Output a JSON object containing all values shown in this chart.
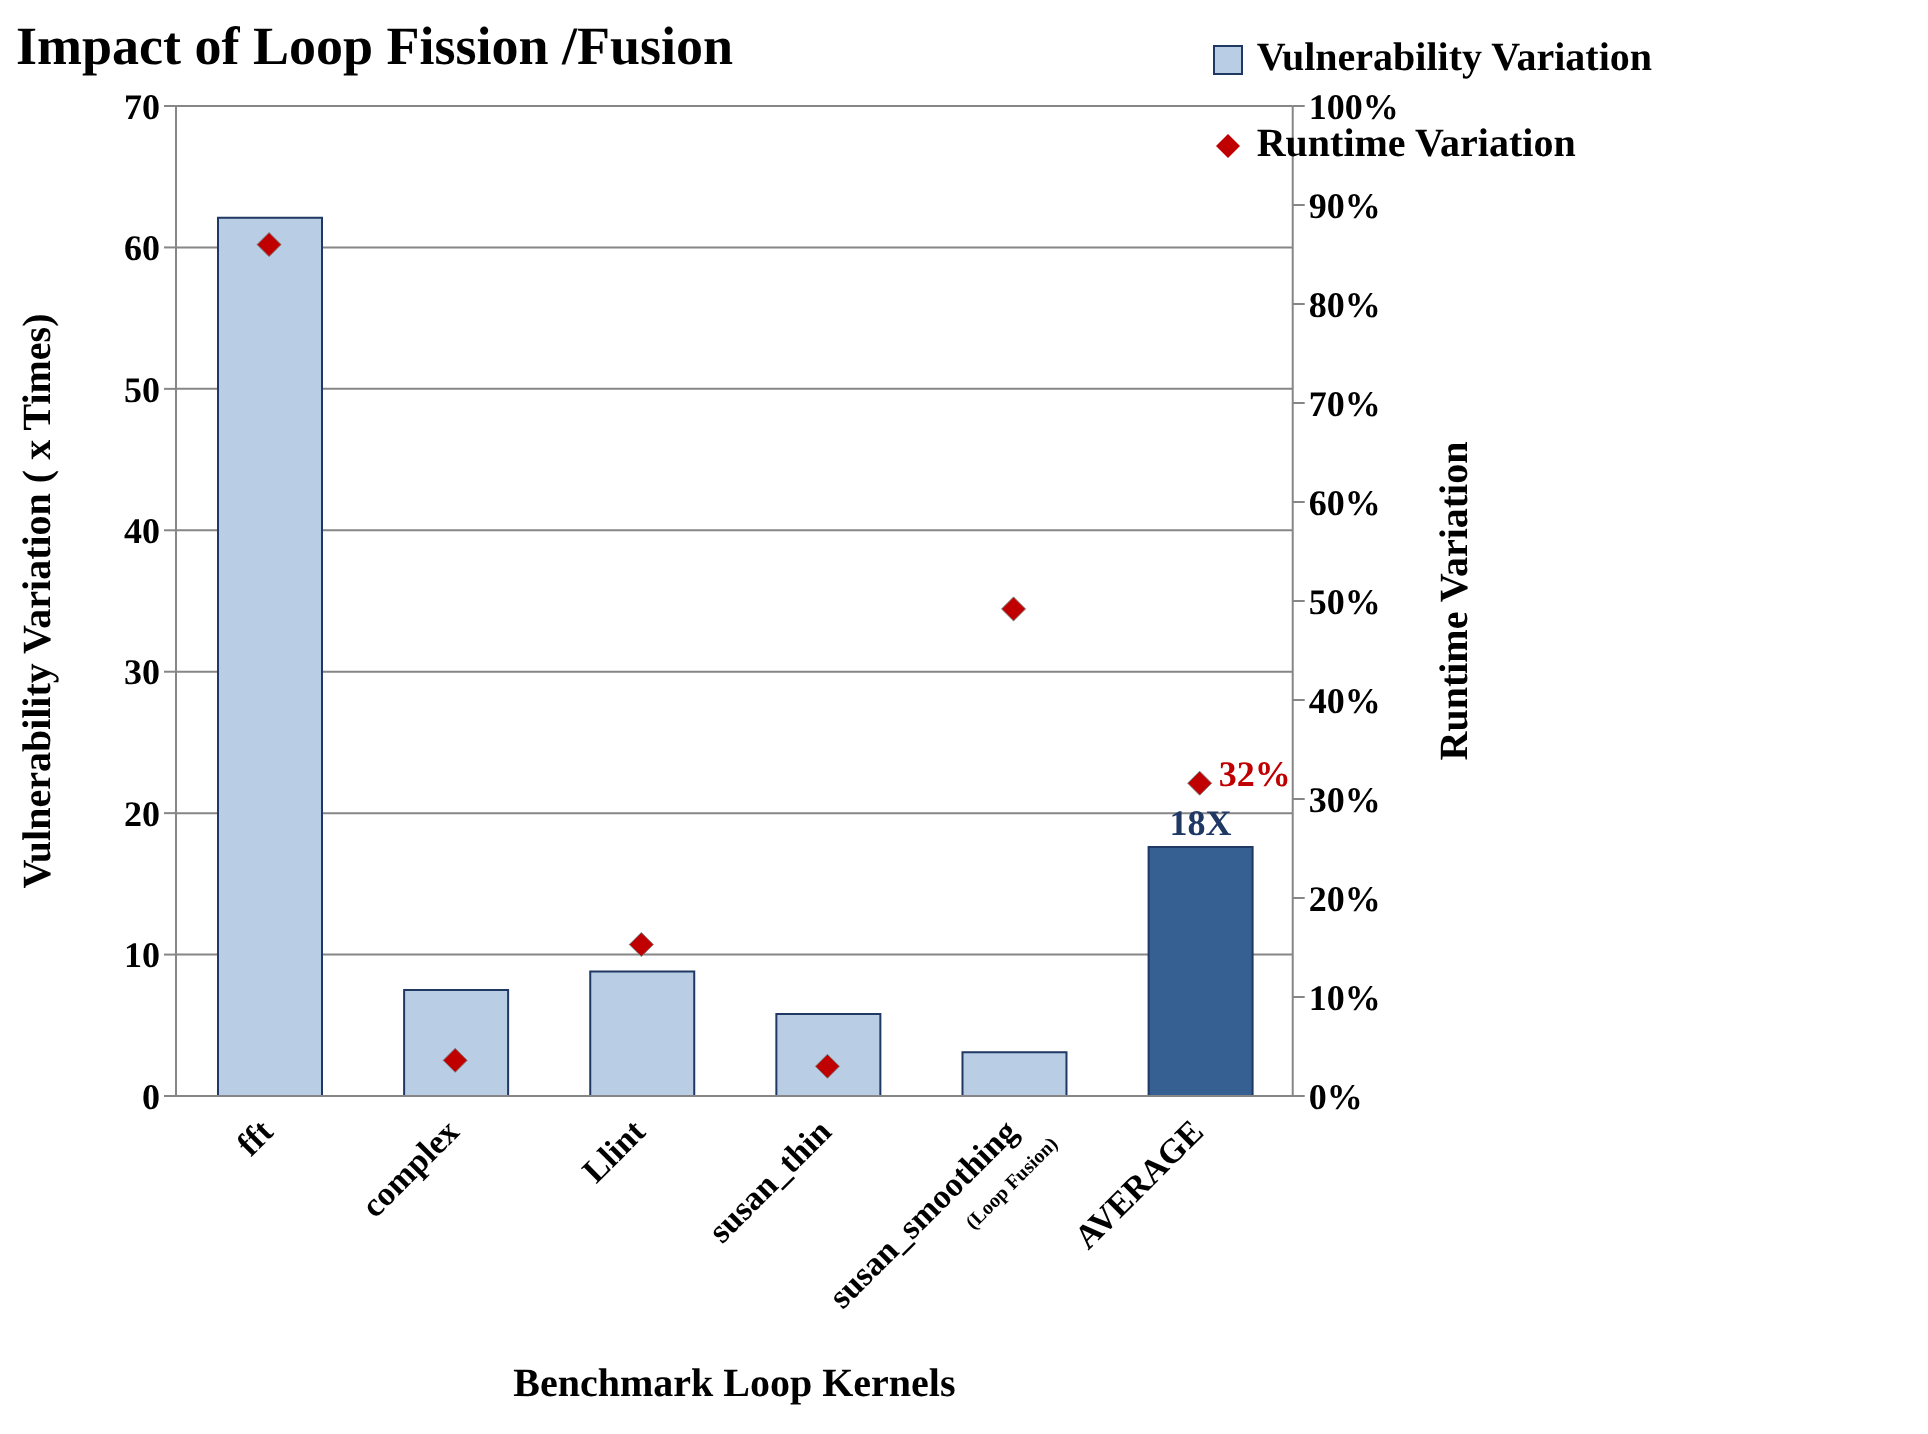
{
  "chart_data": {
    "type": "bar",
    "title": "Impact of  Loop Fission /Fusion",
    "xlabel": "Benchmark Loop Kernels",
    "ylabel": "Vulnerability Variation ( x Times)",
    "y2label": "Runtime Variation",
    "categories": [
      "fft",
      "complex",
      "Llint",
      "susan_thin",
      "susan_smoothing\n(Loop Fusion)",
      "AVERAGE"
    ],
    "series": [
      {
        "name": "Vulnerability Variation",
        "color": "#b9cde5",
        "colors": [
          "#b9cde5",
          "#b9cde5",
          "#b9cde5",
          "#b9cde5",
          "#b9cde5",
          "#366092"
        ],
        "values": [
          62.1,
          7.5,
          8.8,
          5.8,
          3.1,
          17.6
        ],
        "value_labels": [
          null,
          null,
          null,
          null,
          null,
          "18X"
        ]
      },
      {
        "name": "Runtime Variation",
        "type": "scatter",
        "axis": "y2",
        "color": "#c00000",
        "values": [
          86,
          3.6,
          15.3,
          3,
          49.2,
          31.6
        ],
        "value_labels": [
          null,
          null,
          null,
          null,
          null,
          "32%"
        ]
      }
    ],
    "ylim": [
      0,
      70
    ],
    "yticks": [
      0,
      10,
      20,
      30,
      40,
      50,
      60,
      70
    ],
    "y2lim": [
      0,
      100
    ],
    "y2ticks": [
      {
        "value": 0,
        "label": "0%"
      },
      {
        "value": 10,
        "label": "10%"
      },
      {
        "value": 20,
        "label": "20%"
      },
      {
        "value": 30,
        "label": "30%"
      },
      {
        "value": 40,
        "label": "40%"
      },
      {
        "value": 50,
        "label": "50%"
      },
      {
        "value": 60,
        "label": "60%"
      },
      {
        "value": 70,
        "label": "70%"
      },
      {
        "value": 80,
        "label": "80%"
      },
      {
        "value": 90,
        "label": "90%"
      },
      {
        "value": 100,
        "label": "100%"
      }
    ],
    "grid": "y",
    "legend": "top right",
    "marker": "diamond"
  }
}
